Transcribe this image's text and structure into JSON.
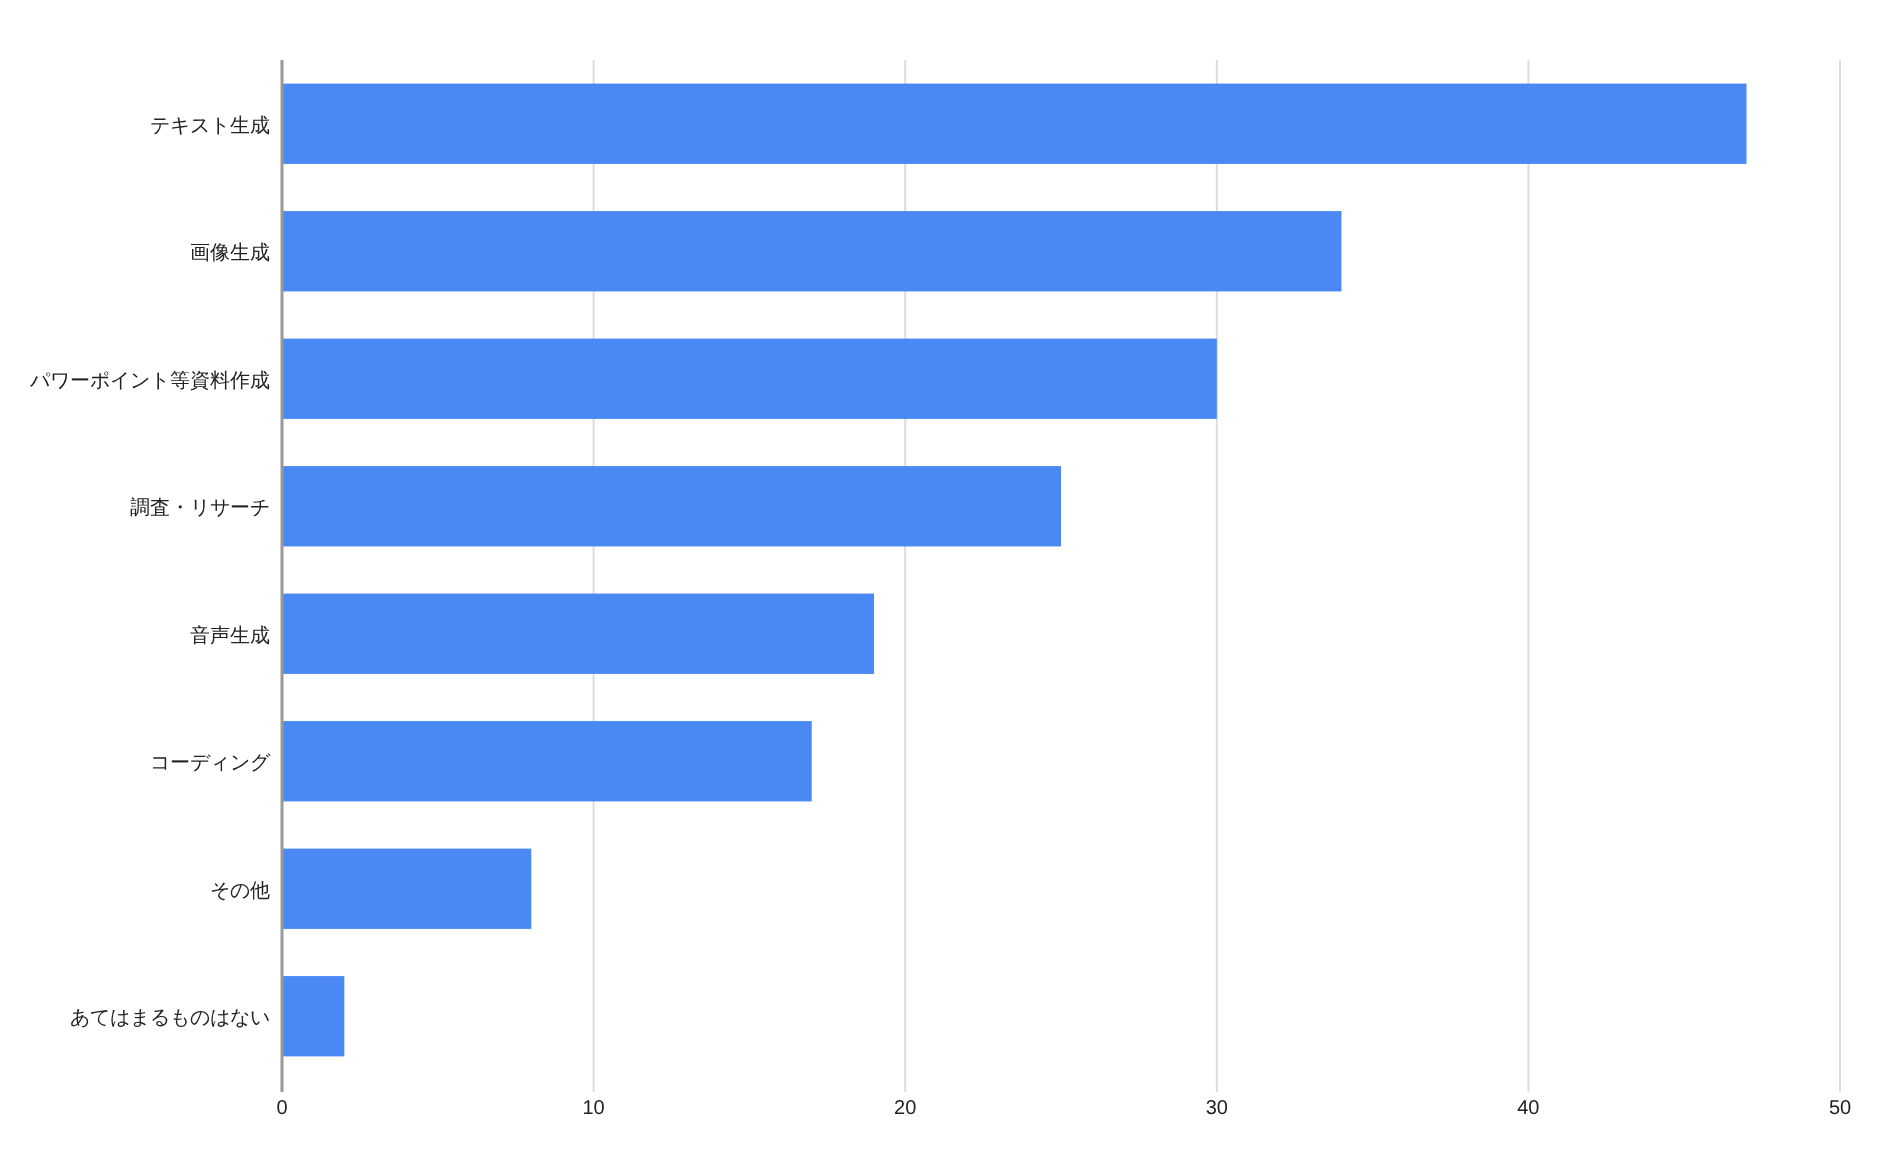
{
  "chart_data": {
    "type": "bar",
    "orientation": "horizontal",
    "categories": [
      "テキスト生成",
      "画像生成",
      "パワーポイント等資料作成",
      "調査・リサーチ",
      "音声生成",
      "コーディング",
      "その他",
      "あてはまるものはない"
    ],
    "values": [
      47,
      34,
      30,
      25,
      19,
      17,
      8,
      2
    ],
    "color": "#4a89f3",
    "xlim": [
      0,
      50
    ],
    "xticks": [
      0,
      10,
      20,
      30,
      40,
      50
    ],
    "grid": "x"
  }
}
